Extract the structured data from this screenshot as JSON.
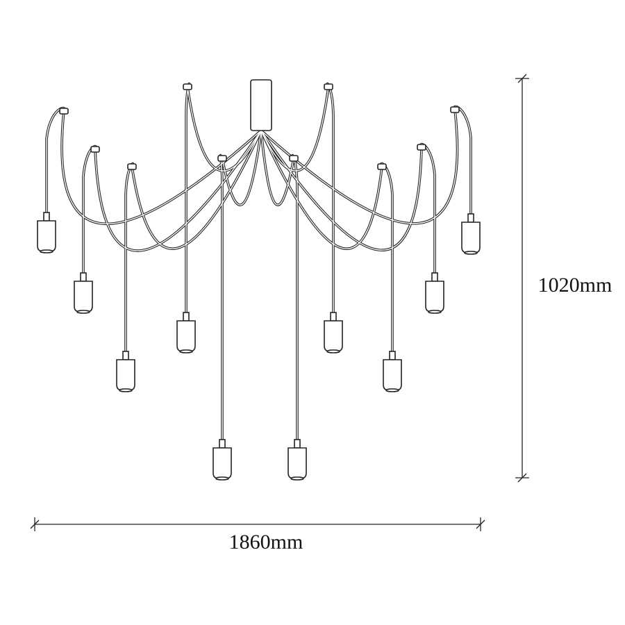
{
  "dimensions": {
    "height": "1020mm",
    "width": "1860mm"
  }
}
